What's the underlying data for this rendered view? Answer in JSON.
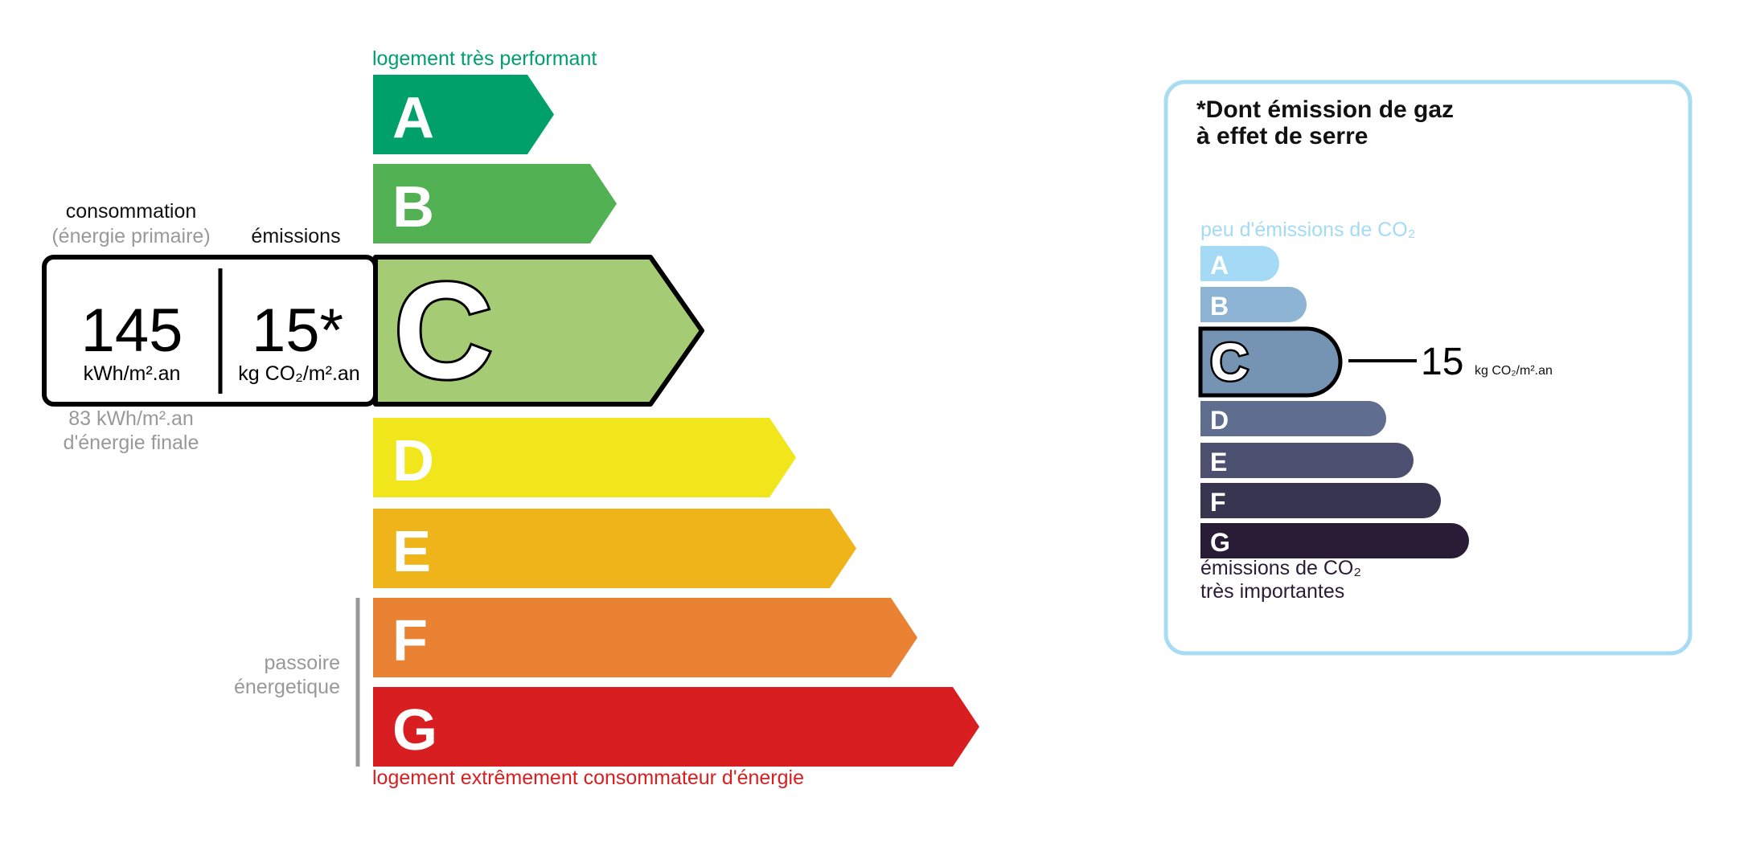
{
  "energy": {
    "top_label": "logement très performant",
    "bottom_label": "logement extrêmement consommateur d'énergie",
    "top_color": "#00a06b",
    "bottom_color": "#d81e20",
    "classes": [
      {
        "letter": "A",
        "color": "#00a06b"
      },
      {
        "letter": "B",
        "color": "#52b153"
      },
      {
        "letter": "C",
        "color": "#a5cc74"
      },
      {
        "letter": "D",
        "color": "#f0e61b"
      },
      {
        "letter": "E",
        "color": "#efb419"
      },
      {
        "letter": "F",
        "color": "#ea8234"
      },
      {
        "letter": "G",
        "color": "#d81e20"
      }
    ],
    "current_class": "C",
    "consumption_heading": "consommation",
    "consumption_sub": "(énergie primaire)",
    "emissions_heading": "émissions",
    "consumption_value": "145",
    "consumption_unit": "kWh/m².an",
    "emissions_value": "15*",
    "emissions_unit": "kg CO₂/m².an",
    "final_energy_value": "83 kWh/m².an",
    "final_energy_label": "d'énergie finale",
    "passoire_line1": "passoire",
    "passoire_line2": "énergetique"
  },
  "ges": {
    "title_line1": "*Dont émission de gaz",
    "title_line2": "à effet de serre",
    "top_label": "peu d'émissions de CO₂",
    "bottom_label_line1": "émissions de CO₂",
    "bottom_label_line2": "très importantes",
    "border_color": "#a8dcf5",
    "classes": [
      {
        "letter": "A",
        "color": "#a4daf6"
      },
      {
        "letter": "B",
        "color": "#8db4d4"
      },
      {
        "letter": "C",
        "color": "#7594b3"
      },
      {
        "letter": "D",
        "color": "#5f6d8f"
      },
      {
        "letter": "E",
        "color": "#4c4f6f"
      },
      {
        "letter": "F",
        "color": "#383551"
      },
      {
        "letter": "G",
        "color": "#291c36"
      }
    ],
    "current_class": "C",
    "value": "15",
    "unit": "kg CO₂/m².an"
  }
}
